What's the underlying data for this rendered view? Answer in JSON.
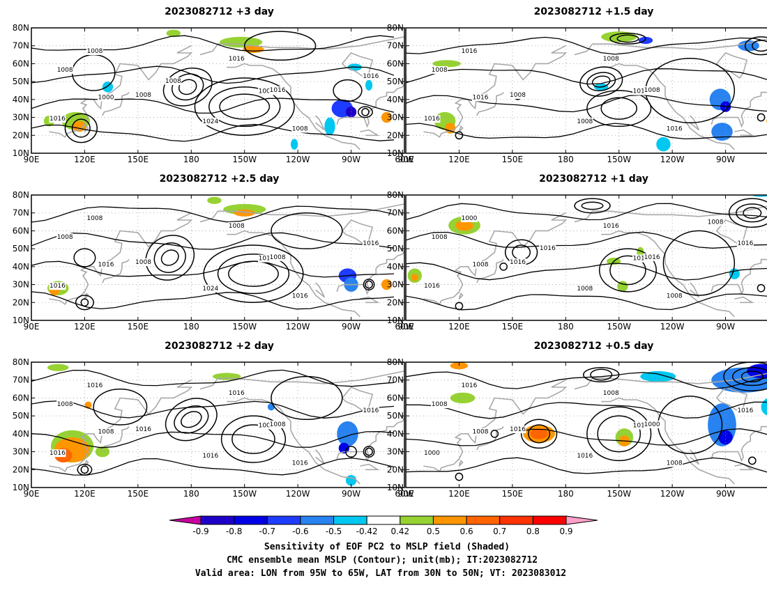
{
  "panels": [
    {
      "title": "2023082712 +3 day",
      "contour_labels": [
        "1008",
        "1016",
        "1008",
        "1000",
        "1016",
        "1008",
        "1024",
        "1008",
        "1016",
        "1008",
        "1016",
        "1008"
      ],
      "shading": [
        {
          "lon": 265,
          "lat": 35,
          "rlon": 6,
          "rlat": 5,
          "level": -0.7
        },
        {
          "lon": 270,
          "lat": 33,
          "rlon": 3,
          "rlat": 3,
          "level": -0.9
        },
        {
          "lon": 258,
          "lat": 25,
          "rlon": 3,
          "rlat": 5,
          "level": -0.5
        },
        {
          "lon": 272,
          "lat": 58,
          "rlon": 4,
          "rlat": 2,
          "level": -0.5
        },
        {
          "lon": 280,
          "lat": 48,
          "rlon": 2,
          "rlat": 3,
          "level": -0.5
        },
        {
          "lon": 133,
          "lat": 47,
          "rlon": 3,
          "rlat": 3,
          "level": -0.5
        },
        {
          "lon": 238,
          "lat": 15,
          "rlon": 2,
          "rlat": 3,
          "level": -0.5
        },
        {
          "lon": 208,
          "lat": 72,
          "rlon": 12,
          "rlat": 3,
          "level": 0.5
        },
        {
          "lon": 215,
          "lat": 68,
          "rlon": 6,
          "rlat": 2,
          "level": 0.6
        },
        {
          "lon": 115,
          "lat": 28,
          "rlon": 8,
          "rlat": 5,
          "level": 0.5
        },
        {
          "lon": 117,
          "lat": 25,
          "rlon": 4,
          "rlat": 3,
          "level": 0.6
        },
        {
          "lon": 170,
          "lat": 77,
          "rlon": 4,
          "rlat": 2,
          "level": 0.5
        },
        {
          "lon": 290,
          "lat": 30,
          "rlon": 3,
          "rlat": 3,
          "level": 0.6
        },
        {
          "lon": 100,
          "lat": 28,
          "rlon": 3,
          "rlat": 3,
          "level": 0.5
        }
      ]
    },
    {
      "title": "2023082712 +1.5 day",
      "contour_labels": [
        "1008",
        "1016",
        "1008",
        "1016",
        "1008",
        "1016",
        "1008",
        "1016",
        "1008",
        "1016"
      ],
      "shading": [
        {
          "lon": 267,
          "lat": 40,
          "rlon": 6,
          "rlat": 6,
          "level": -0.6
        },
        {
          "lon": 270,
          "lat": 36,
          "rlon": 3,
          "rlat": 3,
          "level": -0.8
        },
        {
          "lon": 268,
          "lat": 22,
          "rlon": 6,
          "rlat": 5,
          "level": -0.6
        },
        {
          "lon": 235,
          "lat": 15,
          "rlon": 4,
          "rlat": 4,
          "level": -0.5
        },
        {
          "lon": 283,
          "lat": 70,
          "rlon": 6,
          "rlat": 3,
          "level": -0.6
        },
        {
          "lon": 225,
          "lat": 73,
          "rlon": 4,
          "rlat": 2,
          "level": -0.7
        },
        {
          "lon": 200,
          "lat": 47,
          "rlon": 4,
          "rlat": 2,
          "level": -0.5
        },
        {
          "lon": 210,
          "lat": 75,
          "rlon": 10,
          "rlat": 3,
          "level": 0.5
        },
        {
          "lon": 113,
          "lat": 60,
          "rlon": 8,
          "rlat": 2,
          "level": 0.5
        },
        {
          "lon": 112,
          "lat": 28,
          "rlon": 6,
          "rlat": 5,
          "level": 0.5
        },
        {
          "lon": 115,
          "lat": 24,
          "rlon": 3,
          "rlat": 3,
          "level": 0.6
        },
        {
          "lon": 295,
          "lat": 28,
          "rlon": 2,
          "rlat": 2,
          "level": 0.6
        }
      ]
    },
    {
      "title": "2023082712 +2.5 day",
      "contour_labels": [
        "1008",
        "1016",
        "1008",
        "1016",
        "1008",
        "1016",
        "1024",
        "1016",
        "1008",
        "1008",
        "1016"
      ],
      "shading": [
        {
          "lon": 268,
          "lat": 35,
          "rlon": 5,
          "rlat": 4,
          "level": -0.7
        },
        {
          "lon": 270,
          "lat": 30,
          "rlon": 4,
          "rlat": 4,
          "level": -0.6
        },
        {
          "lon": 210,
          "lat": 72,
          "rlon": 12,
          "rlat": 3,
          "level": 0.5
        },
        {
          "lon": 210,
          "lat": 70,
          "rlon": 6,
          "rlat": 2,
          "level": 0.6
        },
        {
          "lon": 105,
          "lat": 28,
          "rlon": 6,
          "rlat": 4,
          "level": 0.5
        },
        {
          "lon": 103,
          "lat": 27,
          "rlon": 3,
          "rlat": 3,
          "level": 0.6
        },
        {
          "lon": 290,
          "lat": 30,
          "rlon": 3,
          "rlat": 3,
          "level": 0.6
        },
        {
          "lon": 193,
          "lat": 77,
          "rlon": 4,
          "rlat": 2,
          "level": 0.5
        }
      ]
    },
    {
      "title": "2023082712 +1 day",
      "contour_labels": [
        "1008",
        "1016",
        "1016",
        "1008",
        "1016",
        "1016",
        "1008",
        "1008",
        "1016",
        "1000",
        "1016",
        "1016",
        "1008"
      ],
      "shading": [
        {
          "lon": 123,
          "lat": 63,
          "rlon": 9,
          "rlat": 5,
          "level": 0.5
        },
        {
          "lon": 123,
          "lat": 63,
          "rlon": 5,
          "rlat": 3,
          "level": 0.6
        },
        {
          "lon": 95,
          "lat": 35,
          "rlon": 4,
          "rlat": 4,
          "level": 0.5
        },
        {
          "lon": 95,
          "lat": 34,
          "rlon": 2,
          "rlat": 2,
          "level": 0.6
        },
        {
          "lon": 207,
          "lat": 43,
          "rlon": 4,
          "rlat": 2,
          "level": 0.5
        },
        {
          "lon": 212,
          "lat": 29,
          "rlon": 3,
          "rlat": 3,
          "level": 0.5
        },
        {
          "lon": 222,
          "lat": 48,
          "rlon": 2,
          "rlat": 3,
          "level": 0.5
        },
        {
          "lon": 275,
          "lat": 36,
          "rlon": 3,
          "rlat": 3,
          "level": -0.5
        },
        {
          "lon": 290,
          "lat": 80,
          "rlon": 5,
          "rlat": 1,
          "level": -0.5
        },
        {
          "lon": 295,
          "lat": 29,
          "rlon": 1,
          "rlat": 2,
          "level": 0.6
        }
      ]
    },
    {
      "title": "2023082712 +2 day",
      "contour_labels": [
        "1008",
        "1016",
        "1016",
        "1008",
        "1016",
        "1008",
        "1016",
        "1016",
        "1008",
        "1016",
        "1016"
      ],
      "shading": [
        {
          "lon": 113,
          "lat": 33,
          "rlon": 12,
          "rlat": 9,
          "level": 0.5
        },
        {
          "lon": 113,
          "lat": 31,
          "rlon": 10,
          "rlat": 7,
          "level": 0.6
        },
        {
          "lon": 108,
          "lat": 28,
          "rlon": 5,
          "rlat": 4,
          "level": 0.7
        },
        {
          "lon": 268,
          "lat": 40,
          "rlon": 6,
          "rlat": 7,
          "level": -0.6
        },
        {
          "lon": 266,
          "lat": 32,
          "rlon": 3,
          "rlat": 3,
          "level": -0.8
        },
        {
          "lon": 270,
          "lat": 14,
          "rlon": 3,
          "rlat": 3,
          "level": -0.5
        },
        {
          "lon": 225,
          "lat": 55,
          "rlon": 2,
          "rlat": 2,
          "level": -0.6
        },
        {
          "lon": 200,
          "lat": 72,
          "rlon": 8,
          "rlat": 2,
          "level": 0.5
        },
        {
          "lon": 130,
          "lat": 30,
          "rlon": 4,
          "rlat": 3,
          "level": 0.5
        },
        {
          "lon": 105,
          "lat": 77,
          "rlon": 6,
          "rlat": 2,
          "level": 0.5
        },
        {
          "lon": 122,
          "lat": 56,
          "rlon": 2,
          "rlat": 2,
          "level": 0.6
        }
      ]
    },
    {
      "title": "2023082712 +0.5 day",
      "contour_labels": [
        "1008",
        "1000",
        "1016",
        "1008",
        "1008",
        "1016",
        "1016",
        "1008",
        "1000",
        "1016",
        "1016"
      ],
      "shading": [
        {
          "lon": 268,
          "lat": 45,
          "rlon": 8,
          "rlat": 12,
          "level": -0.6
        },
        {
          "lon": 270,
          "lat": 38,
          "rlon": 4,
          "rlat": 4,
          "level": -0.8
        },
        {
          "lon": 280,
          "lat": 70,
          "rlon": 18,
          "rlat": 7,
          "level": -0.6
        },
        {
          "lon": 290,
          "lat": 75,
          "rlon": 8,
          "rlat": 4,
          "level": -0.8
        },
        {
          "lon": 295,
          "lat": 55,
          "rlon": 5,
          "rlat": 5,
          "level": -0.5
        },
        {
          "lon": 232,
          "lat": 72,
          "rlon": 10,
          "rlat": 3,
          "level": -0.5
        },
        {
          "lon": 165,
          "lat": 40,
          "rlon": 9,
          "rlat": 5,
          "level": 0.6
        },
        {
          "lon": 165,
          "lat": 40,
          "rlon": 5,
          "rlat": 3,
          "level": 0.7
        },
        {
          "lon": 122,
          "lat": 60,
          "rlon": 7,
          "rlat": 3,
          "level": 0.5
        },
        {
          "lon": 213,
          "lat": 38,
          "rlon": 5,
          "rlat": 5,
          "level": 0.5
        },
        {
          "lon": 213,
          "lat": 36,
          "rlon": 3,
          "rlat": 3,
          "level": 0.6
        },
        {
          "lon": 120,
          "lat": 78,
          "rlon": 5,
          "rlat": 2,
          "level": 0.6
        }
      ]
    }
  ],
  "axes": {
    "lon_min": 90,
    "lon_max": 300,
    "lat_min": 10,
    "lat_max": 80,
    "lon_ticks": [
      {
        "value": 90,
        "label": "90E"
      },
      {
        "value": 120,
        "label": "120E"
      },
      {
        "value": 150,
        "label": "150E"
      },
      {
        "value": 180,
        "label": "180"
      },
      {
        "value": 210,
        "label": "150W"
      },
      {
        "value": 240,
        "label": "120W"
      },
      {
        "value": 270,
        "label": "90W"
      },
      {
        "value": 300,
        "label": "60W"
      }
    ],
    "lat_ticks": [
      {
        "value": 10,
        "label": "10N"
      },
      {
        "value": 20,
        "label": "20N"
      },
      {
        "value": 30,
        "label": "30N"
      },
      {
        "value": 40,
        "label": "40N"
      },
      {
        "value": 50,
        "label": "50N"
      },
      {
        "value": 60,
        "label": "60N"
      },
      {
        "value": 70,
        "label": "70N"
      },
      {
        "value": 80,
        "label": "80N"
      }
    ]
  },
  "colorbar": {
    "labels": [
      "-0.9",
      "-0.8",
      "-0.7",
      "-0.6",
      "-0.5",
      "-0.42",
      "0.42",
      "0.5",
      "0.6",
      "0.7",
      "0.8",
      "0.9"
    ],
    "colors": [
      "#c800a0",
      "#1e00c8",
      "#0000e6",
      "#1e3cff",
      "#2882f0",
      "#00c8f0",
      "#ffffff",
      "#96d232",
      "#ff9600",
      "#ff6400",
      "#ff3200",
      "#ff0000",
      "#ffa0c8"
    ]
  },
  "caption": {
    "line1": "Sensitivity of EOF PC2 to MSLP field (Shaded)",
    "line2": "CMC ensemble mean MSLP (Contour); unit(mb); IT:2023082712",
    "line3": "Valid area: LON from 95W to 65W, LAT from 30N to 50N; VT: 2023083012"
  }
}
